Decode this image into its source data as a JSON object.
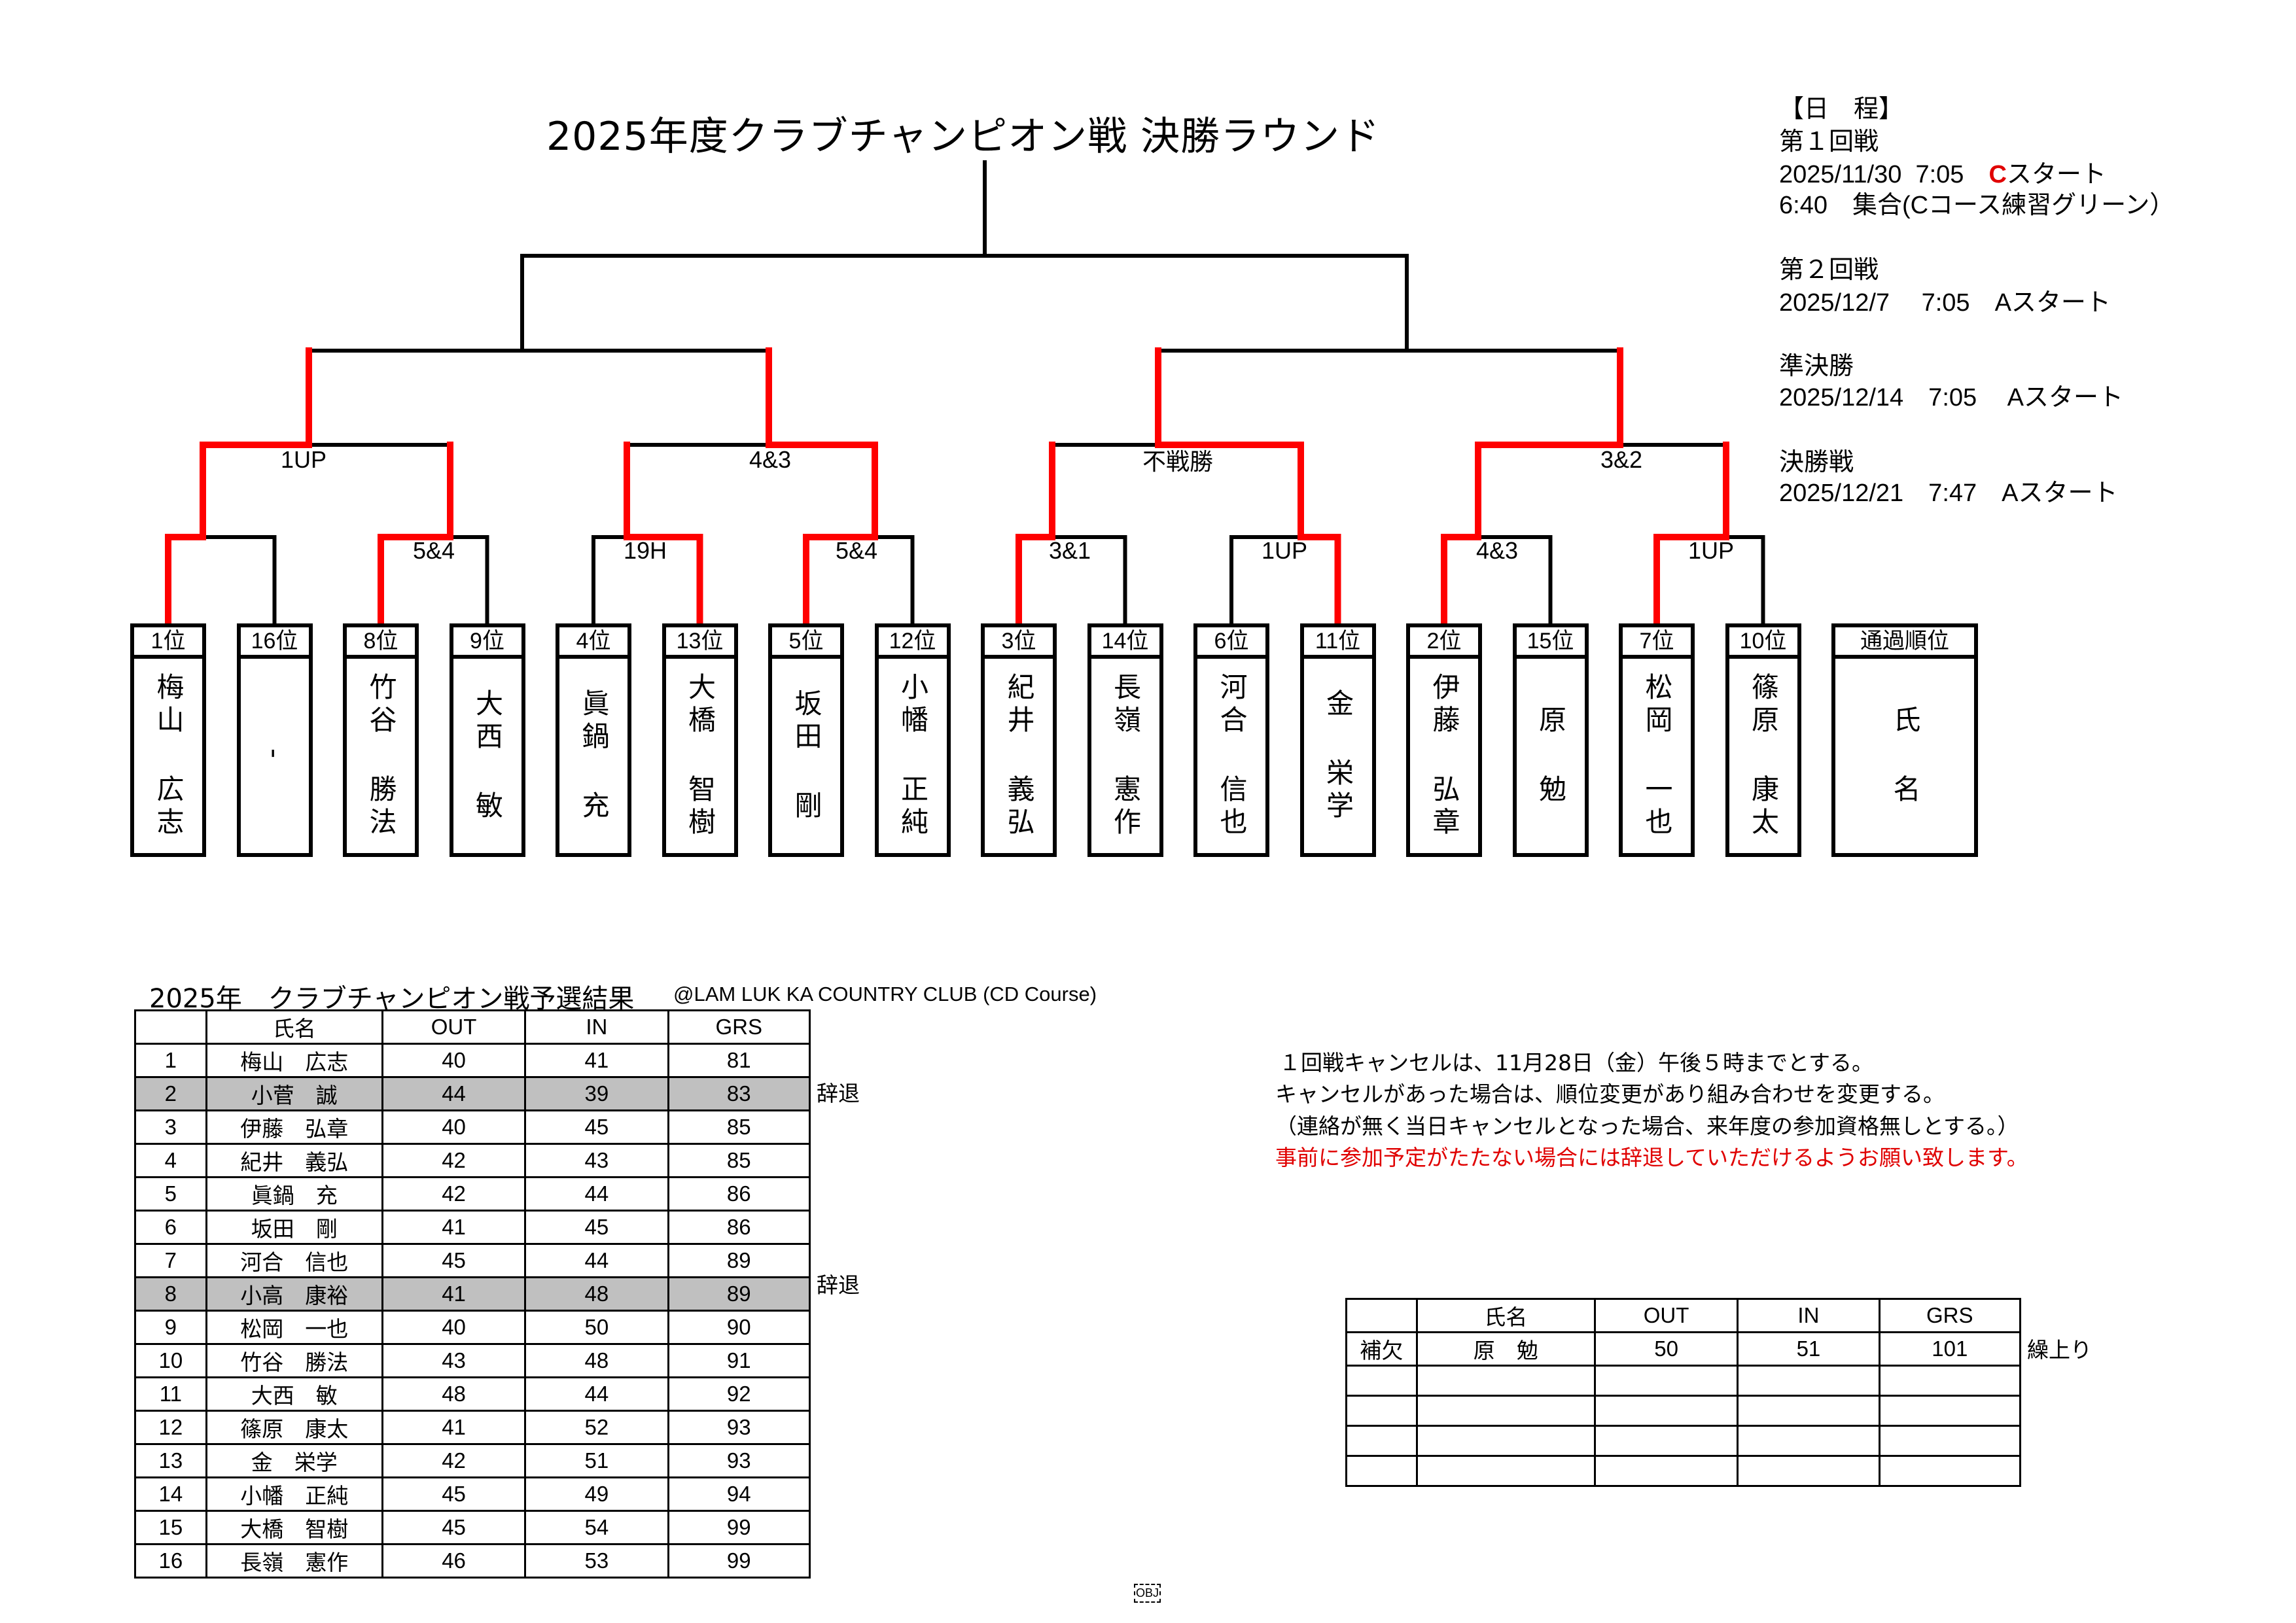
{
  "title": "2025年度クラブチャンピオン戦 決勝ラウンド",
  "colors": {
    "winner_line": "#ff0000",
    "line": "#000000",
    "withdrawn_row": "#c0c0c0",
    "notice_text": "#e00000"
  },
  "bracket": {
    "seeds": [
      {
        "rank": "1位",
        "family": "梅山",
        "given": "広志"
      },
      {
        "rank": "16位",
        "family": "-",
        "given": ""
      },
      {
        "rank": "8位",
        "family": "竹谷",
        "given": "勝法"
      },
      {
        "rank": "9位",
        "family": "大西",
        "given": "敏"
      },
      {
        "rank": "4位",
        "family": "眞鍋",
        "given": "充"
      },
      {
        "rank": "13位",
        "family": "大橋",
        "given": "智樹"
      },
      {
        "rank": "5位",
        "family": "坂田",
        "given": "剛"
      },
      {
        "rank": "12位",
        "family": "小幡",
        "given": "正純"
      },
      {
        "rank": "3位",
        "family": "紀井",
        "given": "義弘"
      },
      {
        "rank": "14位",
        "family": "長嶺",
        "given": "憲作"
      },
      {
        "rank": "6位",
        "family": "河合",
        "given": "信也"
      },
      {
        "rank": "11位",
        "family": "金",
        "given": "栄学"
      },
      {
        "rank": "2位",
        "family": "伊藤",
        "given": "弘章"
      },
      {
        "rank": "15位",
        "family": "原",
        "given": "勉"
      },
      {
        "rank": "7位",
        "family": "松岡",
        "given": "一也"
      },
      {
        "rank": "10位",
        "family": "篠原",
        "given": "康太"
      }
    ],
    "legend_box": {
      "rank": "通過順位",
      "family": "氏",
      "given": "名"
    },
    "round1": [
      {
        "result": "",
        "winner": "left"
      },
      {
        "result": "5&4",
        "winner": "left"
      },
      {
        "result": "19H",
        "winner": "right"
      },
      {
        "result": "5&4",
        "winner": "left"
      },
      {
        "result": "3&1",
        "winner": "left"
      },
      {
        "result": "1UP",
        "winner": "right"
      },
      {
        "result": "4&3",
        "winner": "left"
      },
      {
        "result": "1UP",
        "winner": "left"
      }
    ],
    "round2": [
      {
        "result": "1UP",
        "winner": "left"
      },
      {
        "result": "4&3",
        "winner": "right"
      },
      {
        "result": "不戦勝",
        "winner": "right"
      },
      {
        "result": "3&2",
        "winner": "left"
      }
    ],
    "semifinal": [
      {
        "result": "",
        "winner": null
      },
      {
        "result": "",
        "winner": null
      }
    ],
    "final": {
      "result": "",
      "winner": null
    }
  },
  "schedule": {
    "heading": "【日　程】",
    "round1_label": "第１回戦",
    "round1_date": "2025/11/30  7:05　",
    "round1_course": "C",
    "round1_start": "スタート",
    "round1_meet": "6:40　集合(Cコース練習グリーン）",
    "round2_label": "第２回戦",
    "round2_date": "2025/12/7　 7:05　Aスタート",
    "semi_label": "準決勝",
    "semi_date": "2025/12/14　7:05　 Aスタート",
    "final_label": "決勝戦",
    "final_date": "2025/12/21　7:47　Aスタート"
  },
  "prelim": {
    "title": "2025年　クラブチャンピオン戦予選結果",
    "venue": "@LAM LUK KA COUNTRY CLUB (CD Course)",
    "headers": [
      "",
      "氏名",
      "OUT",
      "IN",
      "GRS"
    ],
    "rows": [
      {
        "rank": "1",
        "name": "梅山　広志",
        "out": "40",
        "in": "41",
        "grs": "81",
        "note": ""
      },
      {
        "rank": "2",
        "name": "小菅　誠",
        "out": "44",
        "in": "39",
        "grs": "83",
        "note": "辞退"
      },
      {
        "rank": "3",
        "name": "伊藤　弘章",
        "out": "40",
        "in": "45",
        "grs": "85",
        "note": ""
      },
      {
        "rank": "4",
        "name": "紀井　義弘",
        "out": "42",
        "in": "43",
        "grs": "85",
        "note": ""
      },
      {
        "rank": "5",
        "name": "眞鍋　充",
        "out": "42",
        "in": "44",
        "grs": "86",
        "note": ""
      },
      {
        "rank": "6",
        "name": "坂田　剛",
        "out": "41",
        "in": "45",
        "grs": "86",
        "note": ""
      },
      {
        "rank": "7",
        "name": "河合　信也",
        "out": "45",
        "in": "44",
        "grs": "89",
        "note": ""
      },
      {
        "rank": "8",
        "name": "小高　康裕",
        "out": "41",
        "in": "48",
        "grs": "89",
        "note": "辞退"
      },
      {
        "rank": "9",
        "name": "松岡　一也",
        "out": "40",
        "in": "50",
        "grs": "90",
        "note": ""
      },
      {
        "rank": "10",
        "name": "竹谷　勝法",
        "out": "43",
        "in": "48",
        "grs": "91",
        "note": ""
      },
      {
        "rank": "11",
        "name": "大西　敏",
        "out": "48",
        "in": "44",
        "grs": "92",
        "note": ""
      },
      {
        "rank": "12",
        "name": "篠原　康太",
        "out": "41",
        "in": "52",
        "grs": "93",
        "note": ""
      },
      {
        "rank": "13",
        "name": "金　栄学",
        "out": "42",
        "in": "51",
        "grs": "93",
        "note": ""
      },
      {
        "rank": "14",
        "name": "小幡　正純",
        "out": "45",
        "in": "49",
        "grs": "94",
        "note": ""
      },
      {
        "rank": "15",
        "name": "大橋　智樹",
        "out": "45",
        "in": "54",
        "grs": "99",
        "note": ""
      },
      {
        "rank": "16",
        "name": "長嶺　憲作",
        "out": "46",
        "in": "53",
        "grs": "99",
        "note": ""
      }
    ]
  },
  "notes": {
    "line1": "１回戦キャンセルは、11月28日（金）午後５時までとする。",
    "line2": "キャンセルがあった場合は、順位変更があり組み合わせを変更する。",
    "line3": "（連絡が無く当日キャンセルとなった場合、来年度の参加資格無しとする。）",
    "line4": "事前に参加予定がたたない場合には辞退していただけるようお願い致します。"
  },
  "substitutes": {
    "headers": [
      "",
      "氏名",
      "OUT",
      "IN",
      "GRS"
    ],
    "rows": [
      {
        "label": "補欠",
        "name": "原　勉",
        "out": "50",
        "in": "51",
        "grs": "101",
        "note": "繰上り"
      },
      {
        "label": "",
        "name": "",
        "out": "",
        "in": "",
        "grs": "",
        "note": ""
      },
      {
        "label": "",
        "name": "",
        "out": "",
        "in": "",
        "grs": "",
        "note": ""
      },
      {
        "label": "",
        "name": "",
        "out": "",
        "in": "",
        "grs": "",
        "note": ""
      },
      {
        "label": "",
        "name": "",
        "out": "",
        "in": "",
        "grs": "",
        "note": ""
      }
    ]
  },
  "footer_mark": "OBJ"
}
